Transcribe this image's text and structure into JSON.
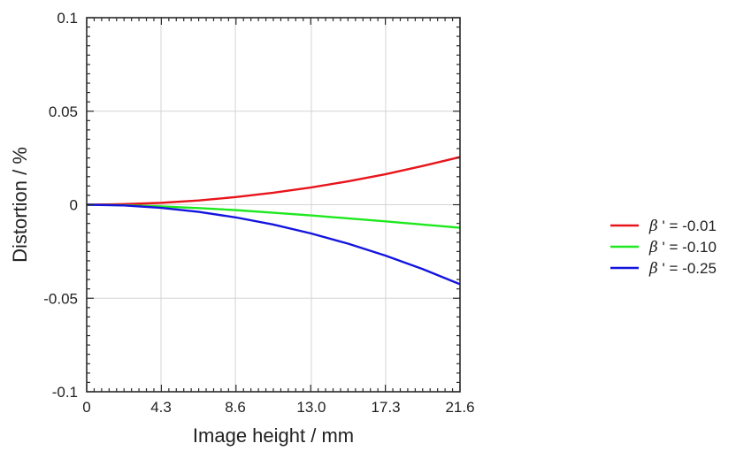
{
  "chart_data": {
    "type": "line",
    "title": "",
    "xlabel": "Image height / mm",
    "ylabel": "Distortion / %",
    "xlim": [
      0,
      21.6
    ],
    "ylim": [
      -0.1,
      0.1
    ],
    "xticks": [
      0,
      4.3,
      8.6,
      13.0,
      17.3,
      21.6
    ],
    "xtick_labels": [
      "0",
      "4.3",
      "8.6",
      "13.0",
      "17.3",
      "21.6"
    ],
    "yticks": [
      0.1,
      0.05,
      0,
      -0.05,
      -0.1
    ],
    "ytick_labels": [
      "0.1",
      "0.05",
      "0",
      "-0.05",
      "-0.1"
    ],
    "grid": "vertical",
    "legend_position": "right",
    "series": [
      {
        "name": "β ' = -0.01",
        "legend_symbol": "β",
        "legend_rest": " ' = -0.01",
        "color": "#e8141b",
        "x": [
          0,
          2.16,
          4.32,
          6.48,
          8.64,
          10.8,
          12.96,
          15.12,
          17.28,
          19.44,
          21.6
        ],
        "y": [
          0,
          0.0003,
          0.001,
          0.0023,
          0.0041,
          0.0064,
          0.0092,
          0.0125,
          0.0163,
          0.0207,
          0.0255
        ]
      },
      {
        "name": "β ' = -0.10",
        "legend_symbol": "β",
        "legend_rest": " ' = -0.10",
        "color": "#1ee81e",
        "x": [
          0,
          2.16,
          4.32,
          6.48,
          8.64,
          10.8,
          12.96,
          15.12,
          17.28,
          19.44,
          21.6
        ],
        "y": [
          0,
          -0.0003,
          -0.0009,
          -0.0018,
          -0.0029,
          -0.0043,
          -0.0057,
          -0.0073,
          -0.0089,
          -0.0106,
          -0.0123
        ]
      },
      {
        "name": "β ' = -0.25",
        "legend_symbol": "β",
        "legend_rest": " ' = -0.25",
        "color": "#1414e0",
        "x": [
          0,
          2.16,
          4.32,
          6.48,
          8.64,
          10.8,
          12.96,
          15.12,
          17.28,
          19.44,
          21.6
        ],
        "y": [
          0,
          -0.0004,
          -0.0017,
          -0.0038,
          -0.0068,
          -0.0106,
          -0.0153,
          -0.0208,
          -0.0272,
          -0.0344,
          -0.0425
        ]
      }
    ]
  }
}
